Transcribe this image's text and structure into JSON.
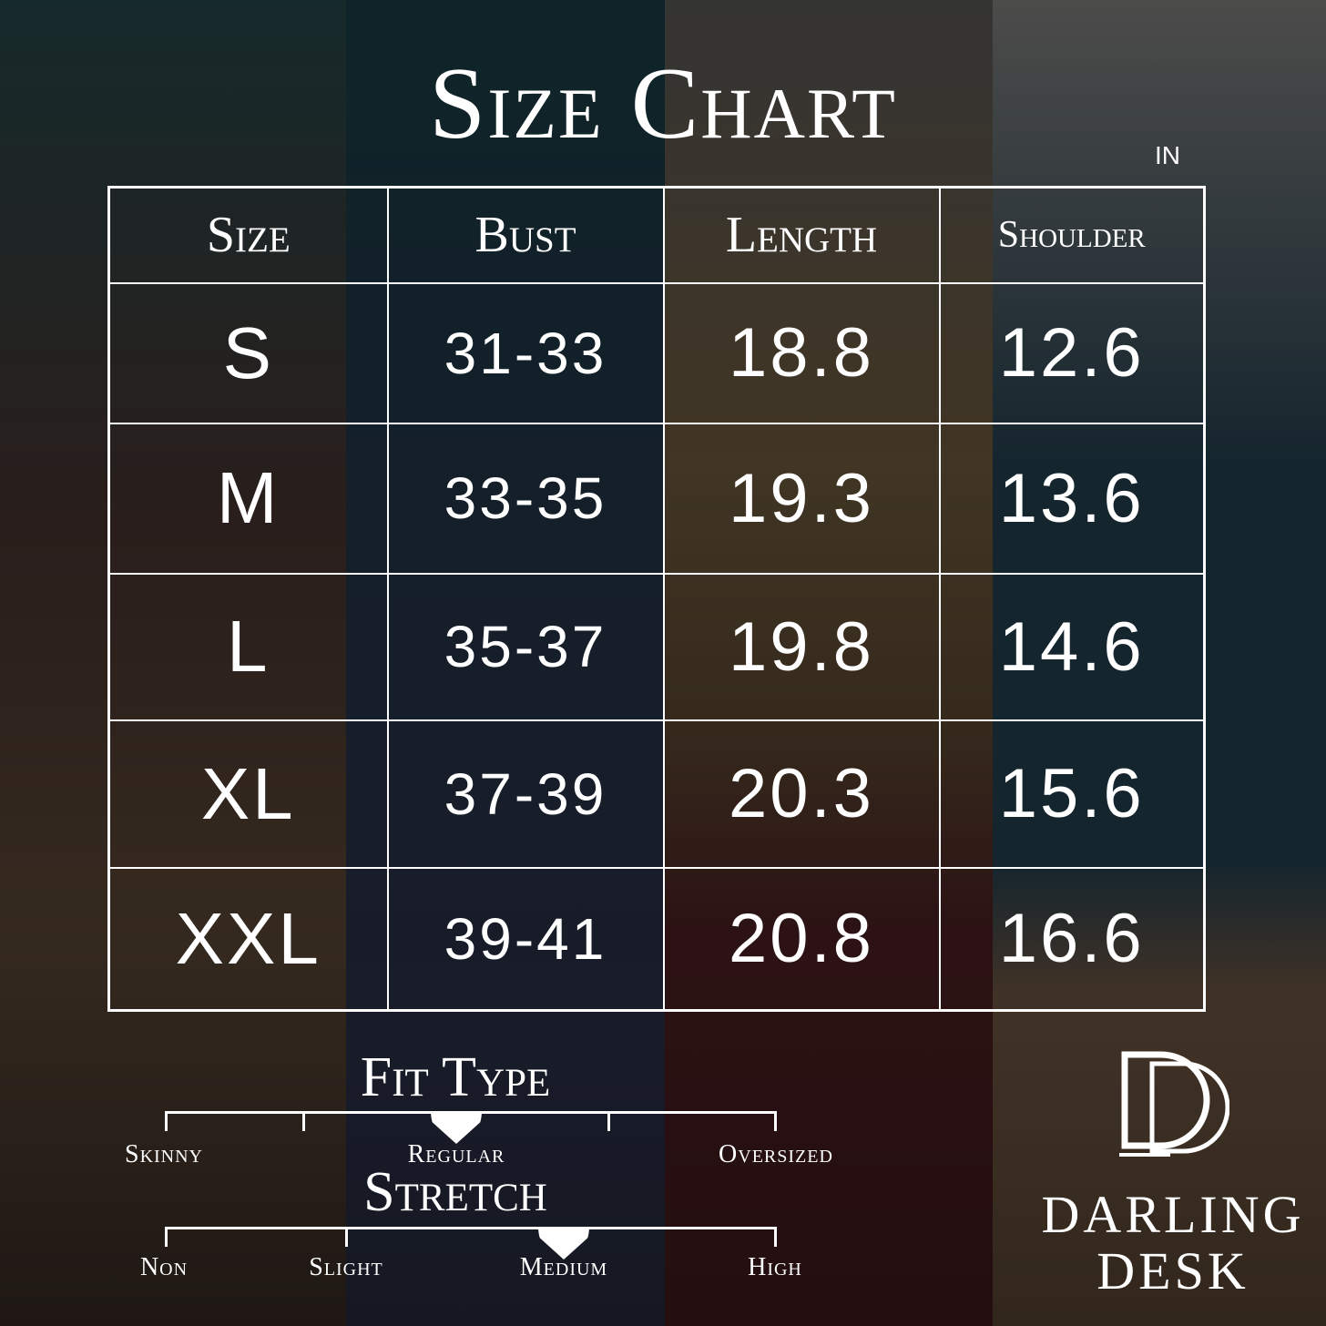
{
  "title": "Size Chart",
  "unit": "in",
  "table": {
    "headers": [
      "Size",
      "Bust",
      "Length",
      "Shoulder"
    ],
    "rows": [
      [
        "S",
        "31-33",
        "18.8",
        "12.6"
      ],
      [
        "M",
        "33-35",
        "19.3",
        "13.6"
      ],
      [
        "L",
        "35-37",
        "19.8",
        "14.6"
      ],
      [
        "XL",
        "37-39",
        "20.3",
        "15.6"
      ],
      [
        "XXL",
        "39-41",
        "20.8",
        "16.6"
      ]
    ]
  },
  "fit_type": {
    "title": "Fit Type",
    "labels": [
      "Skinny",
      "Regular",
      "Oversized"
    ],
    "selected": "Regular"
  },
  "stretch": {
    "title": "Stretch",
    "labels": [
      "Non",
      "Slight",
      "Medium",
      "High"
    ],
    "selected": "Medium"
  },
  "brand": {
    "logo_letters": "DD",
    "line1": "DARLING",
    "line2": "DESK"
  }
}
